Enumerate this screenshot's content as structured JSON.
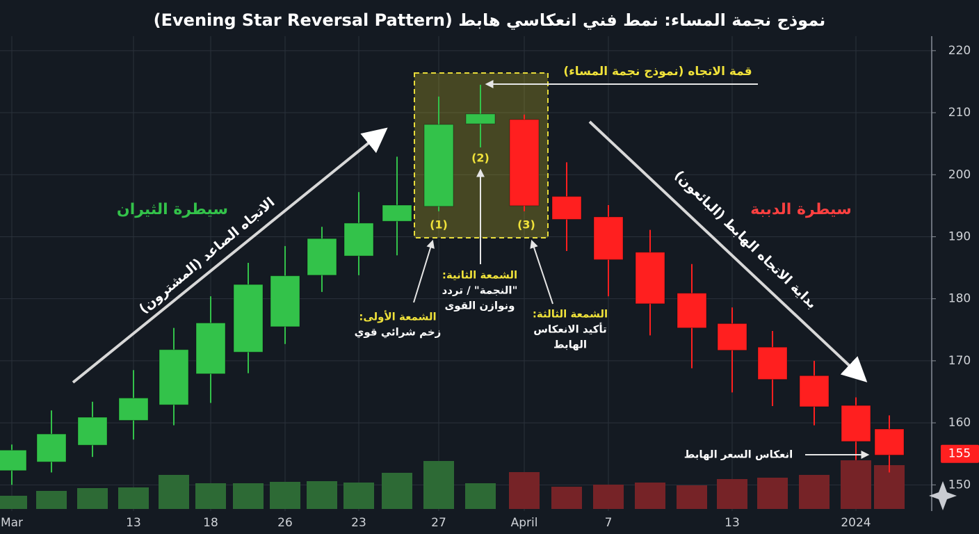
{
  "chart_data": {
    "type": "candlestick",
    "title": "نموذج نجمة المساء: نمط فني انعكاسي هابط (Evening Star Reversal Pattern)",
    "categories": [
      "Mar",
      null,
      null,
      "13",
      null,
      "18",
      null,
      "26",
      null,
      "23",
      null,
      "27",
      null,
      "April",
      null,
      "7",
      null,
      null,
      "13",
      null,
      null,
      "2024",
      null
    ],
    "open": [
      152.3,
      153.7,
      156.4,
      160.4,
      162.9,
      167.9,
      171.4,
      175.5,
      183.8,
      186.9,
      192.5,
      194.9,
      208.2,
      208.9,
      196.5,
      193.2,
      187.5,
      180.9,
      176.0,
      172.2,
      167.6,
      162.8,
      159.0
    ],
    "high": [
      156.5,
      162.0,
      163.4,
      168.5,
      175.3,
      180.4,
      185.8,
      188.5,
      191.6,
      197.2,
      202.9,
      212.6,
      214.5,
      209.7,
      202.0,
      195.1,
      191.1,
      185.6,
      178.6,
      174.8,
      170.0,
      164.1,
      161.2
    ],
    "low": [
      150.0,
      152.0,
      154.5,
      157.3,
      159.6,
      163.2,
      168.0,
      172.7,
      181.1,
      183.8,
      187.0,
      194.1,
      204.4,
      194.1,
      187.7,
      180.4,
      174.1,
      168.8,
      164.9,
      162.7,
      159.6,
      154.0,
      152.0
    ],
    "close": [
      155.6,
      158.2,
      160.9,
      164.0,
      171.8,
      176.1,
      182.3,
      183.7,
      189.7,
      192.2,
      195.1,
      208.1,
      209.8,
      195.0,
      192.8,
      186.3,
      179.2,
      175.3,
      171.7,
      167.0,
      162.6,
      157.0,
      154.8
    ],
    "volume": [
      19,
      26,
      30,
      31,
      49,
      37,
      37,
      39,
      40,
      38,
      52,
      69,
      37,
      53,
      32,
      35,
      38,
      34,
      43,
      45,
      49,
      70,
      63
    ],
    "up_color": "#33c24a",
    "down_color": "#ff1f1f",
    "up_volume_color": "#2d6a35",
    "down_volume_color": "#762327",
    "ylim": [
      146,
      222
    ],
    "yticks": [
      150,
      160,
      170,
      180,
      190,
      200,
      210,
      220
    ],
    "grid": true,
    "last_price": 155,
    "annotations": [
      "سيطرة الثيران",
      "الاتجاه الصاعد (المشترون)",
      "سيطرة الدببة",
      "بداية الاتجاه الهابط (البائعون)",
      "قمة الاتجاه (نموذج نجمة المساء)",
      "(1)",
      "(2)",
      "(3)",
      "الشمعة الأولى:",
      "زخم شرائي قوي",
      "الشمعة الثانية:",
      "\"النجمة\" / تردد",
      "ونوازن القوى",
      "الشمعة الثالثة:",
      "تأكيد الانعكاس",
      "الهابط",
      "انعكاس السعر الهابط"
    ]
  }
}
